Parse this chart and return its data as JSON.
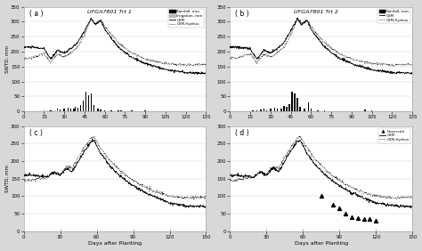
{
  "title_a": "UFGA7801 Trt 1",
  "title_b": "UFGA7801 Trt 2",
  "label_a": "( a )",
  "label_b": "( b )",
  "label_c": "( c )",
  "label_d": "( d )",
  "ylabel_swtd": "SWTD, mm",
  "xlabel_dap": "Days after Planting",
  "legend_rainfall": "Rainfall, mm",
  "legend_irrigation": "Irrigation, mm",
  "legend_csm": "CSM",
  "legend_csm_hydrus": "CSM-Hydrus",
  "legend_observed": "Observed",
  "bg_color": "#d8d8d8",
  "panel_bg": "#ffffff",
  "bar_color": "#000000",
  "irr_color": "#bbbbbb",
  "csm_color": "#000000",
  "csm_hydrus_color": "#000000",
  "obs_color": "#000000",
  "grid_color": "#cccccc"
}
